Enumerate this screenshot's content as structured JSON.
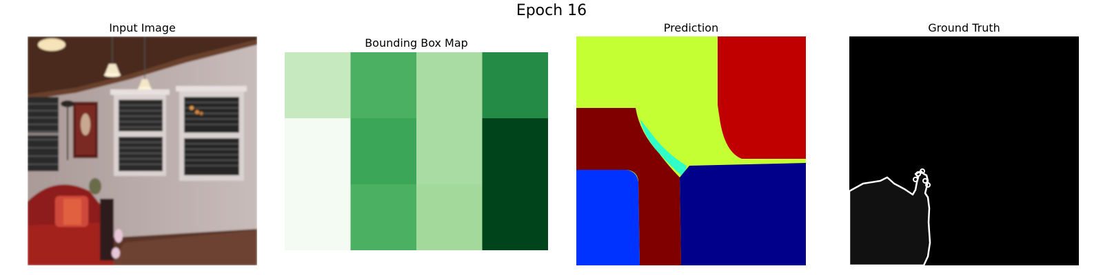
{
  "figure": {
    "title": "Epoch 16"
  },
  "panels": {
    "input": {
      "title": "Input Image"
    },
    "bbox": {
      "title": "Bounding Box Map"
    },
    "prediction": {
      "title": "Prediction"
    },
    "ground_truth": {
      "title": "Ground Truth"
    }
  },
  "chart_data": {
    "type": "heatmap",
    "title": "Bounding Box Map",
    "colormap": "Greens",
    "rows": 3,
    "cols": 4,
    "values": [
      [
        0.25,
        0.6,
        0.35,
        0.75
      ],
      [
        0.02,
        0.65,
        0.35,
        1.0
      ],
      [
        0.02,
        0.6,
        0.37,
        1.0
      ]
    ]
  },
  "colors": {
    "background": "#ffffff",
    "prediction_yellow": "#c3ff33",
    "prediction_red": "#c00000",
    "prediction_darkred": "#800000",
    "prediction_cyan": "#30ffc8",
    "prediction_blue": "#0033ff",
    "prediction_navy": "#00008b",
    "ground_truth_region": "#111111",
    "ground_truth_outline": "#ffffff"
  }
}
